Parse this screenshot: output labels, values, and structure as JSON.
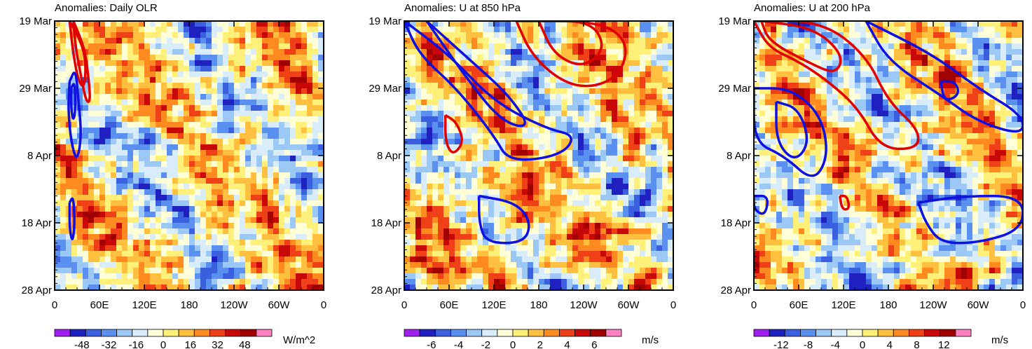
{
  "chart_data": [
    {
      "type": "heatmap",
      "title": "Anomalies: Daily OLR",
      "units": "W/m^2",
      "x_ticks": [
        "0",
        "60E",
        "120E",
        "180",
        "120W",
        "60W",
        "0"
      ],
      "y_ticks": [
        "19 Mar",
        "29 Mar",
        "8 Apr",
        "18 Apr",
        "28 Apr"
      ],
      "xlim": [
        0,
        360
      ],
      "ylim_days": [
        0,
        40
      ],
      "colorbar_labels": [
        "-48",
        "-32",
        "-16",
        "0",
        "16",
        "32",
        "48"
      ],
      "colorbar_range": [
        -64,
        64
      ],
      "contours": [
        {
          "color": "#e00000",
          "points": [
            [
              25,
              0
            ],
            [
              40,
              4
            ],
            [
              45,
              8
            ],
            [
              48,
              12
            ],
            [
              42,
              12
            ],
            [
              35,
              8
            ],
            [
              28,
              4
            ],
            [
              25,
              0
            ]
          ]
        },
        {
          "color": "#e00000",
          "points": [
            [
              20,
              0
            ],
            [
              35,
              3
            ],
            [
              42,
              6
            ],
            [
              40,
              10
            ],
            [
              32,
              9
            ],
            [
              25,
              5
            ],
            [
              20,
              0
            ]
          ]
        },
        {
          "color": "#1010e0",
          "points": [
            [
              20,
              9
            ],
            [
              28,
              7
            ],
            [
              32,
              12
            ],
            [
              36,
              17
            ],
            [
              30,
              21
            ],
            [
              22,
              18
            ],
            [
              18,
              13
            ],
            [
              20,
              9
            ]
          ]
        },
        {
          "color": "#1010e0",
          "points": [
            [
              22,
              10
            ],
            [
              27,
              9
            ],
            [
              28,
              13
            ],
            [
              25,
              15
            ],
            [
              22,
              13
            ],
            [
              22,
              10
            ]
          ]
        },
        {
          "color": "#1010e0",
          "points": [
            [
              20,
              27
            ],
            [
              25,
              26
            ],
            [
              27,
              30
            ],
            [
              24,
              33
            ],
            [
              20,
              31
            ],
            [
              20,
              27
            ]
          ]
        }
      ],
      "fill_seed": 11
    },
    {
      "type": "heatmap",
      "title": "Anomalies: U at 850 hPa",
      "units": "m/s",
      "x_ticks": [
        "0",
        "60E",
        "120E",
        "180",
        "120W",
        "60W",
        "0"
      ],
      "y_ticks": [
        "19 Mar",
        "29 Mar",
        "8 Apr",
        "18 Apr",
        "28 Apr"
      ],
      "xlim": [
        0,
        360
      ],
      "ylim_days": [
        0,
        40
      ],
      "colorbar_labels": [
        "-6",
        "-4",
        "-2",
        "0",
        "2",
        "4",
        "6"
      ],
      "colorbar_range": [
        -8,
        8
      ],
      "contours": [
        {
          "color": "#e00000",
          "points": [
            [
              150,
              0
            ],
            [
              260,
              0
            ],
            [
              300,
              3
            ],
            [
              290,
              8
            ],
            [
              250,
              10
            ],
            [
              210,
              9
            ],
            [
              170,
              5
            ],
            [
              150,
              0
            ]
          ]
        },
        {
          "color": "#e00000",
          "points": [
            [
              180,
              0
            ],
            [
              250,
              0
            ],
            [
              270,
              4
            ],
            [
              240,
              7
            ],
            [
              200,
              5
            ],
            [
              180,
              0
            ]
          ]
        },
        {
          "color": "#e00000",
          "points": [
            [
              55,
              14
            ],
            [
              70,
              15
            ],
            [
              80,
              18
            ],
            [
              65,
              20
            ],
            [
              55,
              18
            ],
            [
              55,
              14
            ]
          ]
        },
        {
          "color": "#1010e0",
          "points": [
            [
              0,
              0
            ],
            [
              60,
              5
            ],
            [
              120,
              12
            ],
            [
              190,
              16
            ],
            [
              230,
              17
            ],
            [
              210,
              20
            ],
            [
              140,
              21
            ],
            [
              120,
              17
            ],
            [
              70,
              10
            ],
            [
              20,
              5
            ],
            [
              0,
              0
            ]
          ]
        },
        {
          "color": "#1010e0",
          "points": [
            [
              30,
              0
            ],
            [
              90,
              6
            ],
            [
              140,
              11
            ],
            [
              170,
              16
            ],
            [
              130,
              15
            ],
            [
              80,
              8
            ],
            [
              30,
              0
            ]
          ]
        },
        {
          "color": "#1010e0",
          "points": [
            [
              100,
              26
            ],
            [
              150,
              27
            ],
            [
              170,
              30
            ],
            [
              160,
              33
            ],
            [
              110,
              33
            ],
            [
              100,
              30
            ],
            [
              100,
              26
            ]
          ]
        }
      ],
      "fill_seed": 23
    },
    {
      "type": "heatmap",
      "title": "Anomalies: U at 200 hPa",
      "units": "m/s",
      "x_ticks": [
        "0",
        "60E",
        "120E",
        "180",
        "120W",
        "60W",
        "0"
      ],
      "y_ticks": [
        "19 Mar",
        "29 Mar",
        "8 Apr",
        "18 Apr",
        "28 Apr"
      ],
      "xlim": [
        0,
        360
      ],
      "ylim_days": [
        0,
        40
      ],
      "colorbar_labels": [
        "-12",
        "-8",
        "-4",
        "0",
        "4",
        "8",
        "12"
      ],
      "colorbar_range": [
        -16,
        16
      ],
      "contours": [
        {
          "color": "#e00000",
          "points": [
            [
              0,
              0
            ],
            [
              90,
              0
            ],
            [
              150,
              5
            ],
            [
              180,
              12
            ],
            [
              220,
              16
            ],
            [
              220,
              19
            ],
            [
              170,
              19
            ],
            [
              140,
              13
            ],
            [
              100,
              9
            ],
            [
              60,
              6
            ],
            [
              20,
              4
            ],
            [
              0,
              0
            ]
          ]
        },
        {
          "color": "#e00000",
          "points": [
            [
              10,
              0
            ],
            [
              80,
              1
            ],
            [
              120,
              5
            ],
            [
              110,
              8
            ],
            [
              70,
              6
            ],
            [
              20,
              3
            ],
            [
              10,
              0
            ]
          ]
        },
        {
          "color": "#e00000",
          "points": [
            [
              115,
              26
            ],
            [
              125,
              26
            ],
            [
              128,
              28
            ],
            [
              118,
              28
            ],
            [
              115,
              26
            ]
          ]
        },
        {
          "color": "#1010e0",
          "points": [
            [
              0,
              10
            ],
            [
              50,
              10
            ],
            [
              90,
              14
            ],
            [
              100,
              20
            ],
            [
              80,
              24
            ],
            [
              40,
              20
            ],
            [
              0,
              18
            ],
            [
              0,
              10
            ]
          ]
        },
        {
          "color": "#1010e0",
          "points": [
            [
              30,
              12
            ],
            [
              60,
              13
            ],
            [
              75,
              18
            ],
            [
              55,
              21
            ],
            [
              30,
              18
            ],
            [
              30,
              12
            ]
          ]
        },
        {
          "color": "#1010e0",
          "points": [
            [
              0,
              26
            ],
            [
              20,
              26
            ],
            [
              15,
              29
            ],
            [
              0,
              28
            ],
            [
              0,
              26
            ]
          ]
        },
        {
          "color": "#1010e0",
          "points": [
            [
              220,
              27
            ],
            [
              280,
              26
            ],
            [
              360,
              26
            ],
            [
              360,
              31
            ],
            [
              300,
              33
            ],
            [
              250,
              33
            ],
            [
              230,
              30
            ],
            [
              220,
              27
            ]
          ]
        },
        {
          "color": "#1010e0",
          "points": [
            [
              150,
              0
            ],
            [
              240,
              5
            ],
            [
              300,
              10
            ],
            [
              360,
              14
            ],
            [
              360,
              17
            ],
            [
              300,
              15
            ],
            [
              250,
              11
            ],
            [
              180,
              6
            ],
            [
              150,
              0
            ]
          ]
        },
        {
          "color": "#1010e0",
          "points": [
            [
              250,
              9
            ],
            [
              270,
              9
            ],
            [
              275,
              11
            ],
            [
              255,
              12
            ],
            [
              250,
              9
            ]
          ]
        }
      ],
      "fill_seed": 37
    }
  ]
}
